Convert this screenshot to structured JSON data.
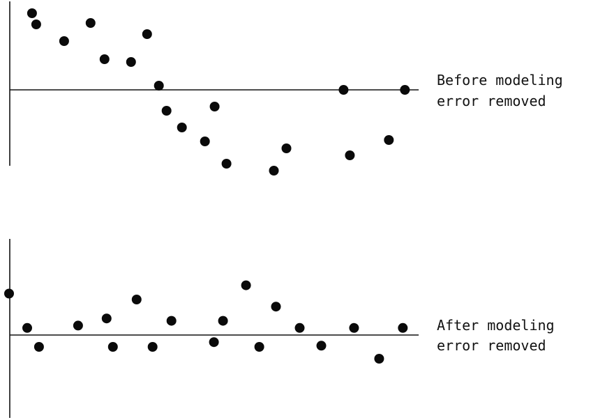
{
  "chart_data": [
    {
      "type": "scatter",
      "title": "",
      "xlabel": "",
      "ylabel": "",
      "grid": false,
      "legend": "none",
      "label_lines": [
        "Before modeling",
        "error removed"
      ],
      "xlim": [
        0,
        848
      ],
      "ylim": [
        -6,
        6
      ],
      "points": [
        {
          "x": 46,
          "y": 5.5
        },
        {
          "x": 52,
          "y": 4.7
        },
        {
          "x": 92,
          "y": 3.5
        },
        {
          "x": 130,
          "y": 4.8
        },
        {
          "x": 150,
          "y": 2.2
        },
        {
          "x": 188,
          "y": 2.0
        },
        {
          "x": 211,
          "y": 4.0
        },
        {
          "x": 228,
          "y": 0.3
        },
        {
          "x": 239,
          "y": -1.5
        },
        {
          "x": 261,
          "y": -2.7
        },
        {
          "x": 294,
          "y": -3.7
        },
        {
          "x": 308,
          "y": -1.2
        },
        {
          "x": 325,
          "y": -5.3
        },
        {
          "x": 393,
          "y": -5.8
        },
        {
          "x": 411,
          "y": -4.2
        },
        {
          "x": 493,
          "y": 0.0
        },
        {
          "x": 502,
          "y": -4.7
        },
        {
          "x": 558,
          "y": -3.6
        },
        {
          "x": 581,
          "y": 0.0
        }
      ]
    },
    {
      "type": "scatter",
      "title": "",
      "xlabel": "",
      "ylabel": "",
      "grid": false,
      "legend": "none",
      "label_lines": [
        "After modeling",
        "error removed"
      ],
      "xlim": [
        0,
        848
      ],
      "ylim": [
        -6,
        6
      ],
      "points": [
        {
          "x": 13,
          "y": 3.5
        },
        {
          "x": 39,
          "y": 0.6
        },
        {
          "x": 56,
          "y": -1.0
        },
        {
          "x": 112,
          "y": 0.8
        },
        {
          "x": 153,
          "y": 1.4
        },
        {
          "x": 162,
          "y": -1.0
        },
        {
          "x": 196,
          "y": 3.0
        },
        {
          "x": 219,
          "y": -1.0
        },
        {
          "x": 246,
          "y": 1.2
        },
        {
          "x": 307,
          "y": -0.6
        },
        {
          "x": 320,
          "y": 1.2
        },
        {
          "x": 353,
          "y": 4.2
        },
        {
          "x": 372,
          "y": -1.0
        },
        {
          "x": 396,
          "y": 2.4
        },
        {
          "x": 430,
          "y": 0.6
        },
        {
          "x": 461,
          "y": -0.9
        },
        {
          "x": 508,
          "y": 0.6
        },
        {
          "x": 544,
          "y": -2.0
        },
        {
          "x": 578,
          "y": 0.6
        }
      ]
    }
  ]
}
